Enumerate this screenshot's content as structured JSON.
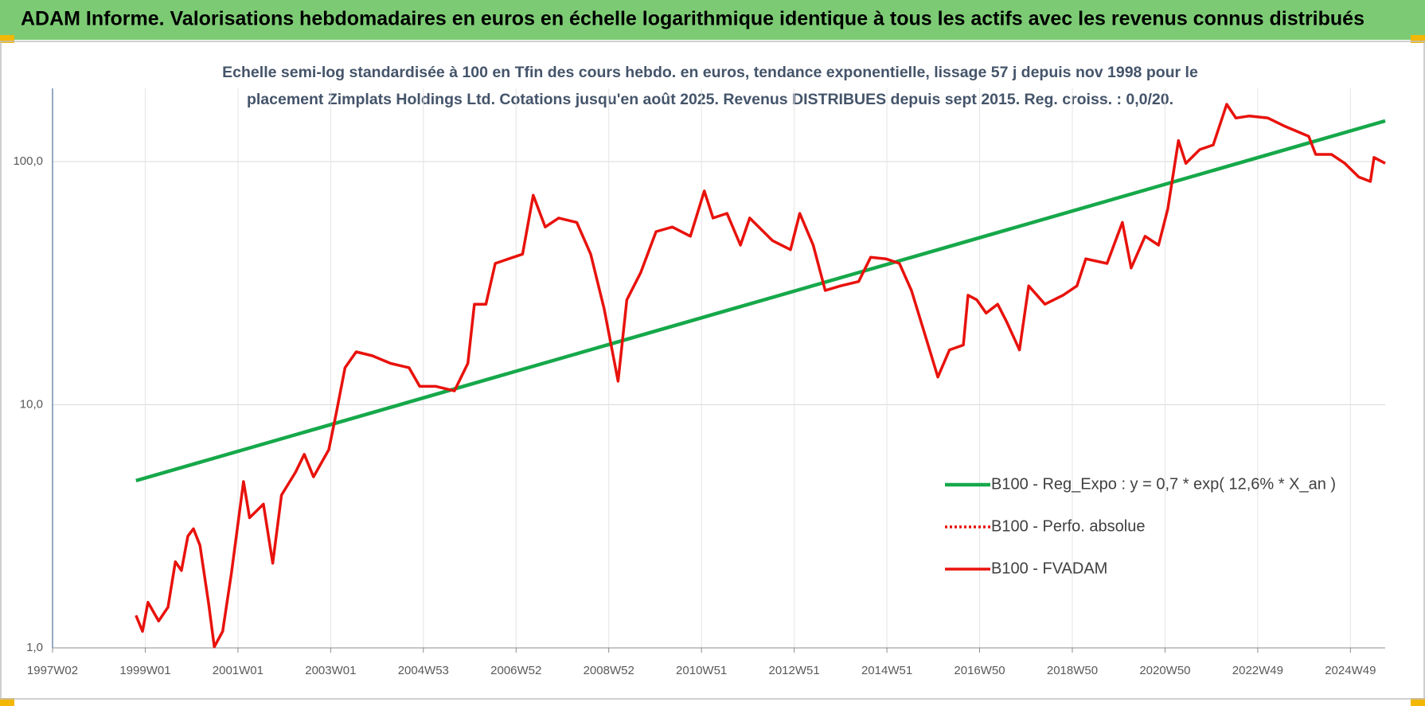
{
  "chart_data": {
    "type": "line",
    "title": "ADAM Informe. Valorisations hebdomadaires en euros en échelle logarithmique identique à tous les actifs avec les revenus connus distribués",
    "subtitle": [
      "Echelle semi-log standardisée à 100 en Tfin des cours hebdo. en euros, tendance exponentielle, lissage 57 j depuis nov 1998 pour le",
      "placement Zimplats Holdings Ltd. Cotations jusqu'en août 2025. Revenus DISTRIBUES depuis sept 2015. Reg. croiss. : 0,0/20."
    ],
    "log_y": true,
    "grid": true,
    "legend_position": "lower right",
    "xlim": [
      1997.0,
      2025.75
    ],
    "ylim": [
      1,
      200
    ],
    "yticks": [
      {
        "value": 1,
        "label": "1,0"
      },
      {
        "value": 10,
        "label": "10,0"
      },
      {
        "value": 100,
        "label": "100,0"
      }
    ],
    "xticks": [
      {
        "value": 1997,
        "label": "1997W02"
      },
      {
        "value": 1999,
        "label": "1999W01"
      },
      {
        "value": 2001,
        "label": "2001W01"
      },
      {
        "value": 2003,
        "label": "2003W01"
      },
      {
        "value": 2005,
        "label": "2004W53"
      },
      {
        "value": 2007,
        "label": "2006W52"
      },
      {
        "value": 2009,
        "label": "2008W52"
      },
      {
        "value": 2011,
        "label": "2010W51"
      },
      {
        "value": 2013,
        "label": "2012W51"
      },
      {
        "value": 2015,
        "label": "2014W51"
      },
      {
        "value": 2017,
        "label": "2016W50"
      },
      {
        "value": 2019,
        "label": "2018W50"
      },
      {
        "value": 2021,
        "label": "2020W50"
      },
      {
        "value": 2023,
        "label": "2022W49"
      },
      {
        "value": 2025,
        "label": "2024W49"
      }
    ],
    "series": [
      {
        "name": "B100 - Reg_Expo : y = 0,7 * exp( 12,6% *  X_an )",
        "color": "#16a84a",
        "style": "solid",
        "width": 4.5,
        "x": [
          1998.8,
          2025.75
        ],
        "values": [
          4.87,
          147
        ]
      },
      {
        "name": "B100 - Perfo. absolue",
        "color": "#e8120c",
        "style": "dotted",
        "width": 3.5
      },
      {
        "name": "B100 - FVADAM",
        "color": "#e8120c",
        "style": "solid",
        "width": 3.5,
        "x": [
          1998.8,
          1998.94,
          1999.06,
          1999.29,
          1999.49,
          1999.65,
          1999.78,
          1999.92,
          2000.04,
          2000.18,
          2000.37,
          2000.49,
          2000.67,
          2000.86,
          2001.12,
          2001.25,
          2001.55,
          2001.75,
          2001.94,
          2002.24,
          2002.43,
          2002.63,
          2002.96,
          2003.12,
          2003.31,
          2003.55,
          2003.9,
          2004.29,
          2004.69,
          2004.92,
          2005.27,
          2005.67,
          2005.96,
          2006.1,
          2006.35,
          2006.55,
          2006.84,
          2007.14,
          2007.37,
          2007.63,
          2007.92,
          2008.31,
          2008.61,
          2008.9,
          2009.2,
          2009.39,
          2009.69,
          2010.02,
          2010.37,
          2010.76,
          2011.06,
          2011.25,
          2011.55,
          2011.84,
          2012.04,
          2012.53,
          2012.92,
          2013.12,
          2013.41,
          2013.67,
          2014.0,
          2014.39,
          2014.65,
          2014.98,
          2015.27,
          2015.53,
          2015.86,
          2016.1,
          2016.35,
          2016.65,
          2016.75,
          2016.94,
          2017.14,
          2017.39,
          2017.59,
          2017.86,
          2018.06,
          2018.41,
          2018.8,
          2019.1,
          2019.29,
          2019.75,
          2020.08,
          2020.27,
          2020.57,
          2020.86,
          2021.06,
          2021.29,
          2021.45,
          2021.75,
          2022.04,
          2022.33,
          2022.53,
          2022.82,
          2023.22,
          2023.61,
          2024.1,
          2024.25,
          2024.59,
          2024.88,
          2025.18,
          2025.43,
          2025.51,
          2025.75
        ],
        "values": [
          1.36,
          1.17,
          1.54,
          1.29,
          1.47,
          2.26,
          2.08,
          2.88,
          3.09,
          2.64,
          1.51,
          1.01,
          1.17,
          2.04,
          4.83,
          3.43,
          3.9,
          2.23,
          4.25,
          5.27,
          6.25,
          5.05,
          6.53,
          9.21,
          14.2,
          16.5,
          15.9,
          14.8,
          14.2,
          11.9,
          11.9,
          11.4,
          14.8,
          25.9,
          25.9,
          38.1,
          39.8,
          41.6,
          72.7,
          53.8,
          58.6,
          56.2,
          41.6,
          24.8,
          12.5,
          27.0,
          35.0,
          51.5,
          53.8,
          49.3,
          75.7,
          58.6,
          61.2,
          45.3,
          58.6,
          47.3,
          43.4,
          61.2,
          45.3,
          29.5,
          30.8,
          32.1,
          40.4,
          39.8,
          38.1,
          29.5,
          18.4,
          13.0,
          16.8,
          17.6,
          28.2,
          27.0,
          23.8,
          25.9,
          21.8,
          16.8,
          30.8,
          25.9,
          28.2,
          30.8,
          39.8,
          38.1,
          56.2,
          36.5,
          49.3,
          45.3,
          63.9,
          122,
          98.3,
          112,
          117,
          172,
          151,
          154,
          151,
          139,
          127,
          107,
          107,
          98.3,
          86.4,
          82.8,
          104,
          98.3
        ]
      }
    ]
  }
}
